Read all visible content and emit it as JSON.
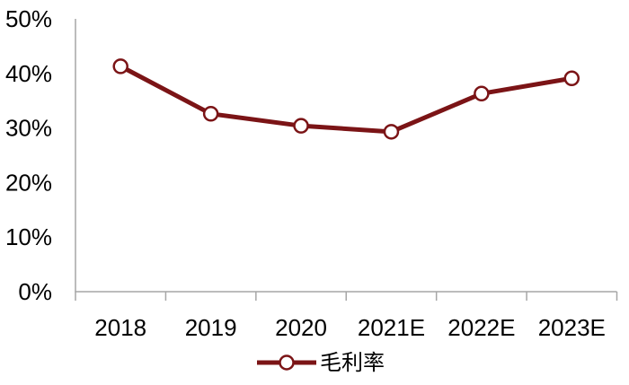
{
  "chart_data": {
    "type": "line",
    "title": "",
    "categories": [
      "2018",
      "2019",
      "2020",
      "2021E",
      "2022E",
      "2023E"
    ],
    "series": [
      {
        "name": "毛利率",
        "values": [
          41.3,
          32.6,
          30.4,
          29.3,
          36.3,
          39.1
        ]
      }
    ],
    "ylim": [
      0,
      50
    ],
    "ytick_values": [
      0,
      10,
      20,
      30,
      40,
      50
    ],
    "ytick_labels": [
      "0%",
      "10%",
      "20%",
      "30%",
      "40%",
      "50%"
    ],
    "grid": false,
    "legend_position": "bottom-center",
    "marker": "open-circle",
    "colors": {
      "line": "#7b1416",
      "marker_fill": "#ffffff",
      "axis": "#a6a6a6",
      "text": "#000000",
      "background": "#ffffff"
    }
  }
}
